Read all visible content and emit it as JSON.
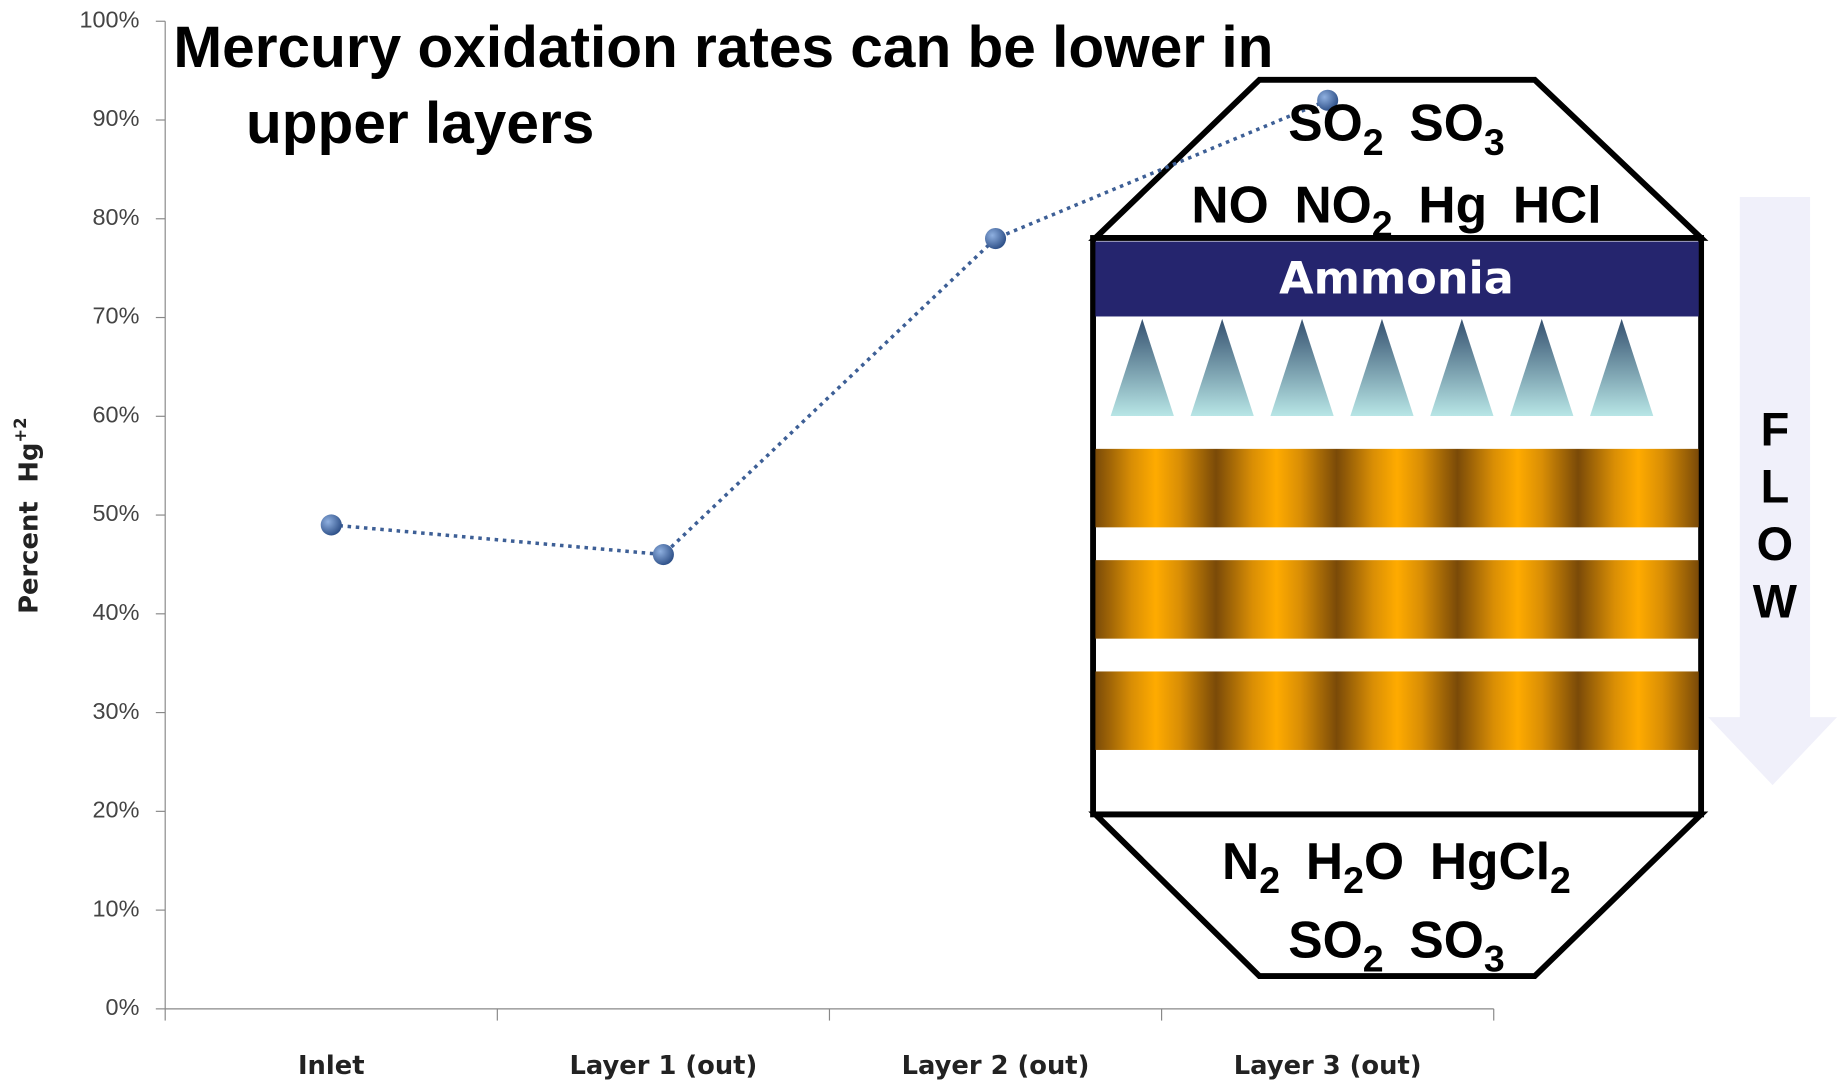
{
  "chart_data": {
    "type": "line",
    "title": [
      "Mercury oxidation rates can be lower in",
      "upper layers"
    ],
    "y_label": {
      "text": "Percent",
      "species": "Hg",
      "charge": "+2"
    },
    "categories": [
      "Inlet",
      "Layer 1 (out)",
      "Layer 2 (out)",
      "Layer 3 (out)"
    ],
    "values": [
      49,
      46,
      78,
      92
    ],
    "color": "#3d5f96",
    "ylim": [
      0,
      100
    ],
    "yticks": [
      {
        "value": 0,
        "label": "0%"
      },
      {
        "value": 10,
        "label": "10%"
      },
      {
        "value": 20,
        "label": "20%"
      },
      {
        "value": 30,
        "label": "30%"
      },
      {
        "value": 40,
        "label": "40%"
      },
      {
        "value": 50,
        "label": "50%"
      },
      {
        "value": 60,
        "label": "60%"
      },
      {
        "value": 70,
        "label": "70%"
      },
      {
        "value": 80,
        "label": "80%"
      },
      {
        "value": 90,
        "label": "90%"
      },
      {
        "value": 100,
        "label": "100%"
      }
    ]
  },
  "diagram": {
    "inputs": [
      [
        [
          "SO",
          "2"
        ],
        [
          "SO",
          "3"
        ]
      ],
      [
        [
          "NO"
        ],
        [
          "NO",
          "2"
        ],
        [
          "Hg"
        ],
        [
          "HCl"
        ]
      ]
    ],
    "reagent": "Ammonia",
    "outputs": [
      [
        [
          "N",
          "2"
        ],
        [
          "H",
          "2",
          "O"
        ],
        [
          "HgCl",
          "2"
        ]
      ],
      [
        [
          "SO",
          "2"
        ],
        [
          "SO",
          "3"
        ]
      ]
    ],
    "flow": [
      "F",
      "L",
      "O",
      "W"
    ]
  }
}
